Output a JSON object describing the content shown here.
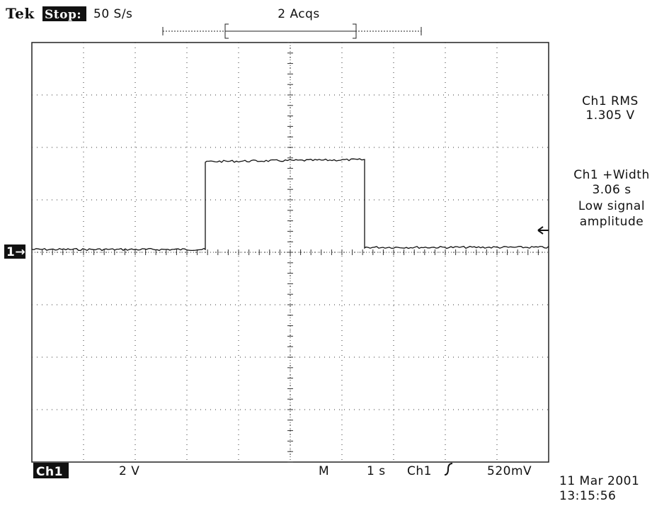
{
  "header": {
    "brand": "Tek",
    "status": "Stop:",
    "sample_rate": "50 S/s",
    "acquisitions": "2 Acqs"
  },
  "measurements": [
    {
      "label": "Ch1 RMS",
      "value": "1.305 V"
    },
    {
      "label": "Ch1 +Width",
      "value": "3.06 s",
      "note": [
        "Low signal",
        "amplitude"
      ]
    }
  ],
  "channel_marker": "1→",
  "footer": {
    "channel": "Ch1",
    "volts_per_div": "2 V",
    "mode": "M",
    "time_per_div": "1 s",
    "trigger_source": "Ch1",
    "trigger_level": "520mV",
    "date": "11 Mar 2001",
    "time": "13:15:56"
  }
}
